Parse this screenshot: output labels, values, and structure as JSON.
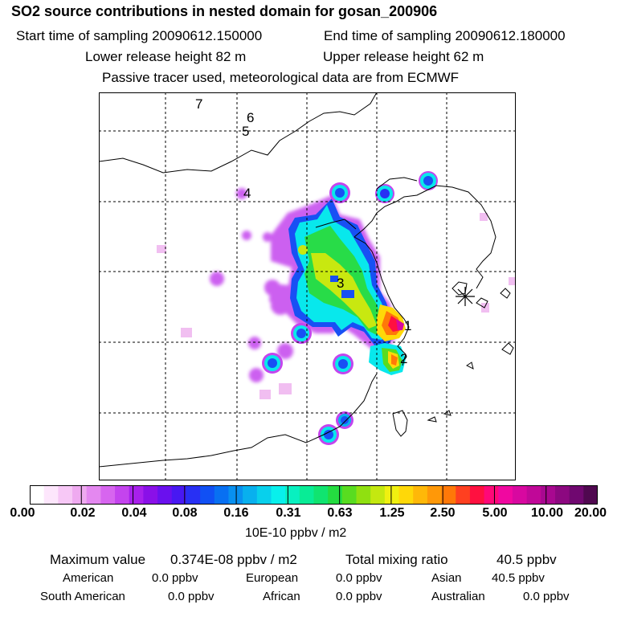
{
  "header": {
    "title": "SO2 source contributions in nested domain for gosan_200906",
    "start_label": "Start time of sampling 20090612.150000",
    "end_label": "End time of sampling 20090612.180000",
    "lower_label": "Lower release height   82 m",
    "upper_label": "Upper release height   62 m",
    "note": "Passive tracer used, meteorological data are from ECMWF"
  },
  "map": {
    "markers": [
      "1",
      "2",
      "3",
      "4",
      "5",
      "6",
      "7"
    ],
    "site_symbol": "receptor-star-icon"
  },
  "legend": {
    "ticks": [
      "0.00",
      "0.02",
      "0.04",
      "0.08",
      "0.16",
      "0.31",
      "0.63",
      "1.25",
      "2.50",
      "5.00",
      "10.00",
      "20.00"
    ],
    "units": "10E-10 ppbv / m2",
    "colors": [
      "#ffffff",
      "#fde6fc",
      "#f7c8f6",
      "#efaaf0",
      "#e488f0",
      "#d765ef",
      "#c444ee",
      "#a820ec",
      "#8a10e8",
      "#6a10ee",
      "#4818f2",
      "#2830f4",
      "#1050f4",
      "#0870f2",
      "#0890f0",
      "#08b0ee",
      "#08d0ec",
      "#08f0ec",
      "#08f0c0",
      "#08ec96",
      "#10e470",
      "#24dc40",
      "#58dc20",
      "#90e010",
      "#c4e810",
      "#f0f010",
      "#ffd808",
      "#ffb808",
      "#ff9808",
      "#ff7808",
      "#ff4020",
      "#ff1040",
      "#ff0878",
      "#f008a0",
      "#d808a0",
      "#c00898",
      "#a80890",
      "#8c0880",
      "#700870",
      "#500850"
    ]
  },
  "stats": {
    "max_label": "Maximum value",
    "max_value": "0.374E-08 ppbv / m2",
    "total_label": "Total mixing ratio",
    "total_value": "40.5 ppbv"
  },
  "regions": [
    {
      "name": "American",
      "value": "0.0 ppbv"
    },
    {
      "name": "European",
      "value": "0.0 ppbv"
    },
    {
      "name": "Asian",
      "value": "40.5 ppbv"
    },
    {
      "name": "South American",
      "value": "0.0 ppbv"
    },
    {
      "name": "African",
      "value": "0.0 ppbv"
    },
    {
      "name": "Australian",
      "value": "0.0 ppbv"
    }
  ]
}
